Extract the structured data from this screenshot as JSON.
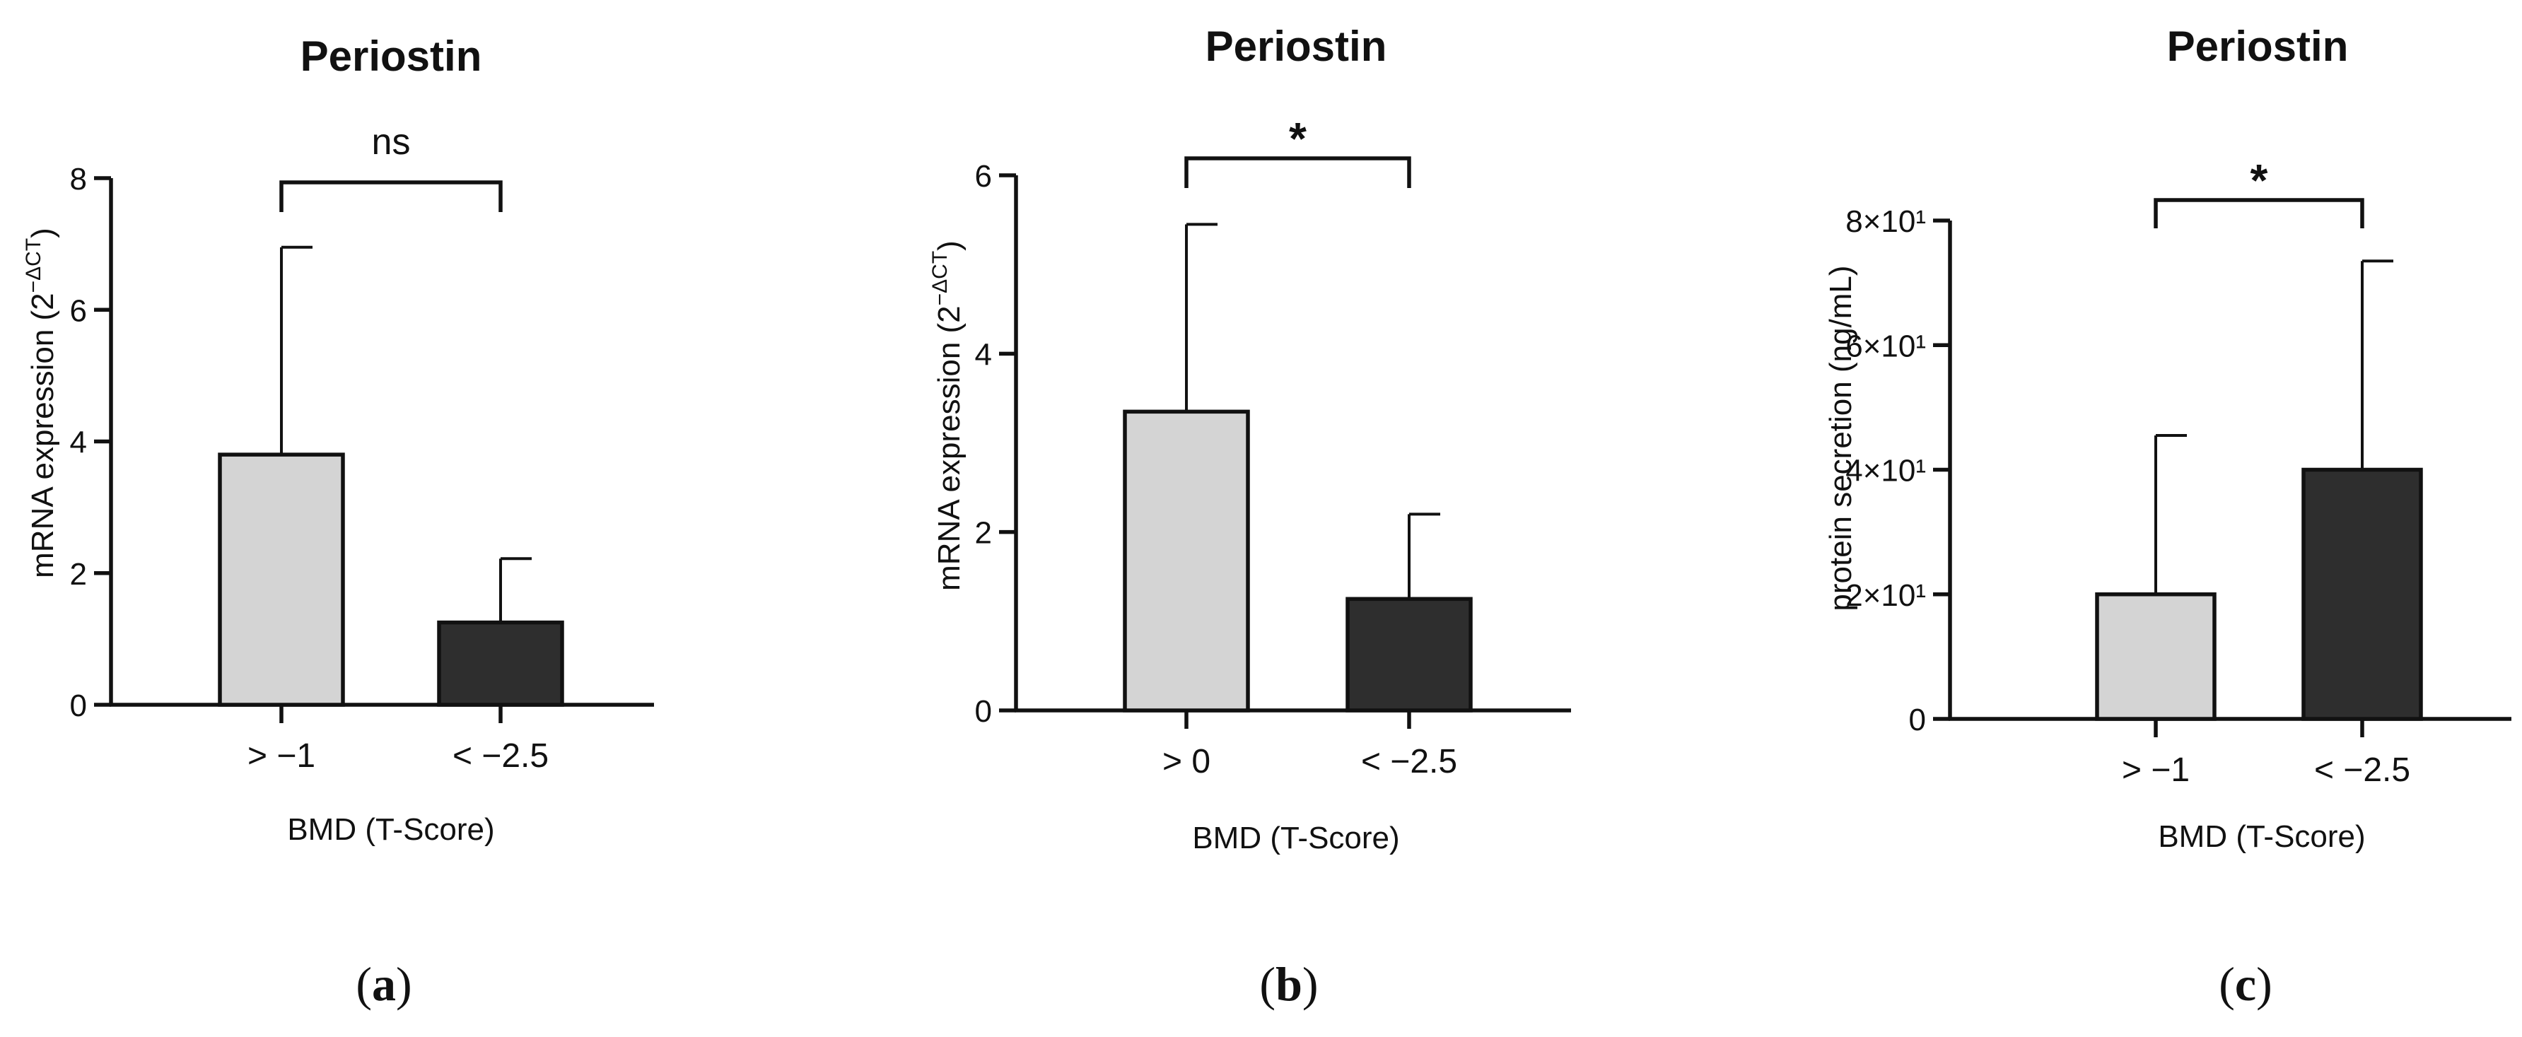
{
  "chart_data": [
    {
      "type": "bar",
      "panel": "a",
      "title": "Periostin",
      "ylabel": "mRNA expression (2",
      "ylabel_sup": "−ΔCT",
      "ylabel_end": ")",
      "xlabel": "BMD (T-Score)",
      "categories": [
        "> −1",
        "< −2.5"
      ],
      "values": [
        3.8,
        1.25
      ],
      "errors": [
        3.15,
        0.97
      ],
      "bar_colors": [
        "#d4d4d4",
        "#2e2e2e"
      ],
      "ylim": [
        0,
        8
      ],
      "yticks": [
        0,
        2,
        4,
        6,
        8
      ],
      "ytick_labels": [
        "0",
        "2",
        "4",
        "6",
        "8"
      ],
      "significance": "ns"
    },
    {
      "type": "bar",
      "panel": "b",
      "title": "Periostin",
      "ylabel": "mRNA expression (2",
      "ylabel_sup": "−ΔCT",
      "ylabel_end": ")",
      "xlabel": "BMD (T-Score)",
      "categories": [
        "> 0",
        "< −2.5"
      ],
      "values": [
        3.35,
        1.25
      ],
      "errors": [
        2.1,
        0.95
      ],
      "bar_colors": [
        "#d4d4d4",
        "#2e2e2e"
      ],
      "ylim": [
        0,
        6
      ],
      "yticks": [
        0,
        2,
        4,
        6
      ],
      "ytick_labels": [
        "0",
        "2",
        "4",
        "6"
      ],
      "significance": "*"
    },
    {
      "type": "bar",
      "panel": "c",
      "title": "Periostin",
      "ylabel": "protein secretion (ng/mL)",
      "ylabel_sup": "",
      "ylabel_end": "",
      "xlabel": "BMD (T-Score)",
      "categories": [
        "> −1",
        "< −2.5"
      ],
      "values": [
        20,
        40
      ],
      "errors": [
        25.5,
        33.5
      ],
      "bar_colors": [
        "#d4d4d4",
        "#2e2e2e"
      ],
      "ylim": [
        0,
        80
      ],
      "yticks": [
        0,
        20,
        40,
        60,
        80
      ],
      "ytick_labels": [
        "0",
        "2×10¹",
        "4×10¹",
        "6×10¹",
        "8×10¹"
      ],
      "significance": "*"
    }
  ],
  "panel_labels": [
    {
      "open": "(",
      "letter": "a",
      "close": ")"
    },
    {
      "open": "(",
      "letter": "b",
      "close": ")"
    },
    {
      "open": "(",
      "letter": "c",
      "close": ")"
    }
  ]
}
